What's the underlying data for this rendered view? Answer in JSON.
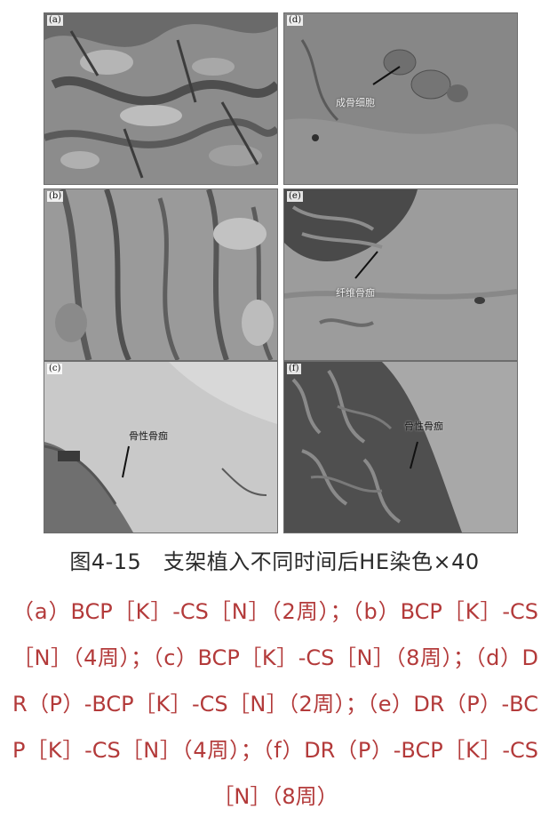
{
  "panels": [
    {
      "id": "a",
      "tag": "(a)",
      "annotation": ""
    },
    {
      "id": "b",
      "tag": "(b)",
      "annotation": ""
    },
    {
      "id": "c",
      "tag": "(c)",
      "annotation": "骨性骨痂"
    },
    {
      "id": "d",
      "tag": "(d)",
      "annotation": "成骨细胞"
    },
    {
      "id": "e",
      "tag": "(e)",
      "annotation": "纤维骨痂"
    },
    {
      "id": "f",
      "tag": "(f)",
      "annotation": "骨性骨痂"
    }
  ],
  "caption": "图4-15　支架植入不同时间后HE染色×40",
  "subcaption": "（a）BCP［K］-CS［N］（2周）；（b）BCP［K］-CS［N］（4周）；（c）BCP［K］-CS［N］（8周）；（d）DR（P）-BCP［K］-CS［N］（2周）；（e）DR（P）-BCP［K］-CS［N］（4周）；（f）DR（P）-BCP［K］-CS［N］（8周）",
  "colors": {
    "caption_text": "#2b2b2b",
    "subcaption_text": "#b33a3a"
  }
}
